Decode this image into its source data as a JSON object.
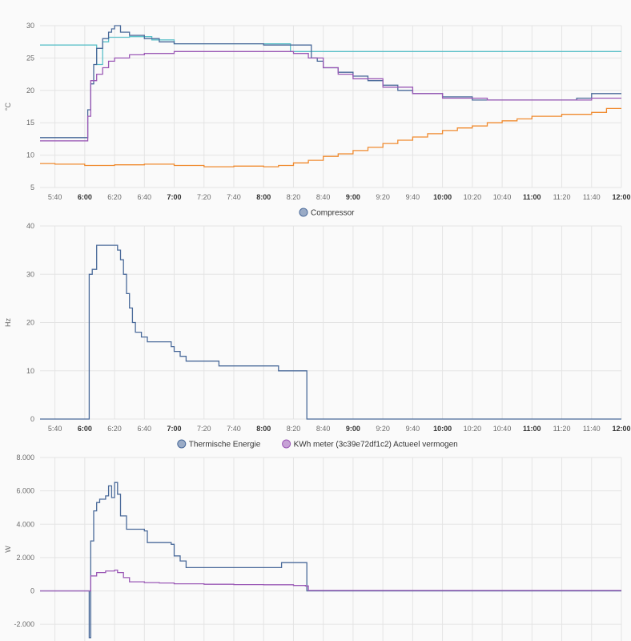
{
  "chart_data": [
    {
      "type": "line",
      "ylabel": "°C",
      "ylim": [
        5,
        30
      ],
      "yticks": [
        5,
        10,
        15,
        20,
        25,
        30
      ],
      "x_start": "5:30",
      "x_end": "12:00",
      "xticks": [
        "5:40",
        "6:00",
        "6:20",
        "6:40",
        "7:00",
        "7:20",
        "7:40",
        "8:00",
        "8:20",
        "8:40",
        "9:00",
        "9:20",
        "9:40",
        "10:00",
        "10:20",
        "10:40",
        "11:00",
        "11:20",
        "11:40",
        "12:00"
      ],
      "bold_xticks": [
        "6:00",
        "7:00",
        "8:00",
        "9:00",
        "10:00",
        "11:00",
        "12:00"
      ],
      "legend": [],
      "series": [
        {
          "color": "#5bc0c8",
          "step": true,
          "points": [
            [
              "5:30",
              27
            ],
            [
              "6:05",
              27
            ],
            [
              "6:08",
              24
            ],
            [
              "6:12",
              27.5
            ],
            [
              "6:16",
              28.2
            ],
            [
              "6:30",
              28.3
            ],
            [
              "6:45",
              27.8
            ],
            [
              "7:00",
              27.2
            ],
            [
              "8:00",
              27.2
            ],
            [
              "8:17",
              27.2
            ],
            [
              "8:18",
              26
            ],
            [
              "12:00",
              26
            ]
          ]
        },
        {
          "color": "#4a6a9a",
          "step": true,
          "points": [
            [
              "5:30",
              12.7
            ],
            [
              "6:00",
              12.7
            ],
            [
              "6:02",
              17
            ],
            [
              "6:04",
              21
            ],
            [
              "6:06",
              24
            ],
            [
              "6:08",
              26.5
            ],
            [
              "6:12",
              28
            ],
            [
              "6:16",
              29
            ],
            [
              "6:18",
              29.5
            ],
            [
              "6:20",
              30
            ],
            [
              "6:24",
              29
            ],
            [
              "6:30",
              28.5
            ],
            [
              "6:40",
              28
            ],
            [
              "6:50",
              27.5
            ],
            [
              "7:00",
              27.2
            ],
            [
              "7:30",
              27.2
            ],
            [
              "8:00",
              27
            ],
            [
              "8:29",
              27
            ],
            [
              "8:32",
              25
            ],
            [
              "8:36",
              24.5
            ],
            [
              "8:40",
              23.5
            ],
            [
              "8:50",
              22.8
            ],
            [
              "9:00",
              22.2
            ],
            [
              "9:10",
              21.5
            ],
            [
              "9:20",
              20.8
            ],
            [
              "9:30",
              20
            ],
            [
              "9:40",
              19.5
            ],
            [
              "10:00",
              19
            ],
            [
              "10:20",
              18.5
            ],
            [
              "10:40",
              18.5
            ],
            [
              "11:00",
              18.5
            ],
            [
              "11:30",
              18.8
            ],
            [
              "11:40",
              19.5
            ],
            [
              "12:00",
              19.5
            ]
          ]
        },
        {
          "color": "#9b59b6",
          "step": true,
          "points": [
            [
              "5:30",
              12.2
            ],
            [
              "6:00",
              12.2
            ],
            [
              "6:02",
              16
            ],
            [
              "6:04",
              21.5
            ],
            [
              "6:08",
              22.5
            ],
            [
              "6:12",
              23.5
            ],
            [
              "6:16",
              24.5
            ],
            [
              "6:20",
              25
            ],
            [
              "6:30",
              25.5
            ],
            [
              "6:40",
              25.7
            ],
            [
              "7:00",
              26
            ],
            [
              "7:30",
              26
            ],
            [
              "8:00",
              26
            ],
            [
              "8:20",
              25.7
            ],
            [
              "8:30",
              25
            ],
            [
              "8:40",
              23.5
            ],
            [
              "8:50",
              22.5
            ],
            [
              "9:00",
              21.8
            ],
            [
              "9:20",
              20.5
            ],
            [
              "9:40",
              19.5
            ],
            [
              "10:00",
              18.8
            ],
            [
              "10:30",
              18.5
            ],
            [
              "11:00",
              18.5
            ],
            [
              "11:40",
              18.8
            ],
            [
              "12:00",
              18.8
            ]
          ]
        },
        {
          "color": "#f08a2e",
          "step": true,
          "points": [
            [
              "5:30",
              8.7
            ],
            [
              "5:40",
              8.6
            ],
            [
              "6:00",
              8.4
            ],
            [
              "6:20",
              8.5
            ],
            [
              "6:40",
              8.6
            ],
            [
              "7:00",
              8.4
            ],
            [
              "7:20",
              8.2
            ],
            [
              "7:40",
              8.3
            ],
            [
              "8:00",
              8.2
            ],
            [
              "8:10",
              8.4
            ],
            [
              "8:20",
              8.8
            ],
            [
              "8:30",
              9.2
            ],
            [
              "8:40",
              9.8
            ],
            [
              "8:50",
              10.2
            ],
            [
              "9:00",
              10.7
            ],
            [
              "9:10",
              11.2
            ],
            [
              "9:20",
              11.8
            ],
            [
              "9:30",
              12.3
            ],
            [
              "9:40",
              12.8
            ],
            [
              "9:50",
              13.3
            ],
            [
              "10:00",
              13.8
            ],
            [
              "10:10",
              14.2
            ],
            [
              "10:20",
              14.5
            ],
            [
              "10:30",
              15
            ],
            [
              "10:40",
              15.3
            ],
            [
              "10:50",
              15.6
            ],
            [
              "11:00",
              16
            ],
            [
              "11:20",
              16.3
            ],
            [
              "11:40",
              16.6
            ],
            [
              "11:50",
              17.2
            ],
            [
              "12:00",
              17.2
            ]
          ]
        }
      ]
    },
    {
      "type": "line",
      "ylabel": "Hz",
      "ylim": [
        0,
        40
      ],
      "yticks": [
        0,
        10,
        20,
        30,
        40
      ],
      "x_start": "5:30",
      "x_end": "12:00",
      "xticks": [
        "5:40",
        "6:00",
        "6:20",
        "6:40",
        "7:00",
        "7:20",
        "7:40",
        "8:00",
        "8:20",
        "8:40",
        "9:00",
        "9:20",
        "9:40",
        "10:00",
        "10:20",
        "10:40",
        "11:00",
        "11:20",
        "11:40",
        "12:00"
      ],
      "bold_xticks": [
        "6:00",
        "7:00",
        "8:00",
        "9:00",
        "10:00",
        "11:00",
        "12:00"
      ],
      "legend": [
        "Compressor"
      ],
      "series": [
        {
          "name": "Compressor",
          "color": "#4a6a9a",
          "step": true,
          "points": [
            [
              "5:30",
              0
            ],
            [
              "6:02",
              0
            ],
            [
              "6:03",
              30
            ],
            [
              "6:05",
              31
            ],
            [
              "6:08",
              36
            ],
            [
              "6:22",
              35
            ],
            [
              "6:24",
              33
            ],
            [
              "6:26",
              30
            ],
            [
              "6:28",
              26
            ],
            [
              "6:30",
              23
            ],
            [
              "6:32",
              20
            ],
            [
              "6:34",
              18
            ],
            [
              "6:38",
              17
            ],
            [
              "6:42",
              16
            ],
            [
              "6:58",
              15
            ],
            [
              "7:00",
              14
            ],
            [
              "7:04",
              13
            ],
            [
              "7:08",
              12
            ],
            [
              "7:30",
              11
            ],
            [
              "8:10",
              10
            ],
            [
              "8:28",
              10
            ],
            [
              "8:29",
              0
            ],
            [
              "12:00",
              0
            ]
          ]
        }
      ]
    },
    {
      "type": "line",
      "ylabel": "W",
      "ylim": [
        -3000,
        8000
      ],
      "yticks": [
        -2000,
        0,
        2000,
        4000,
        6000,
        8000
      ],
      "ytick_labels": [
        "-2.000",
        "0",
        "2.000",
        "4.000",
        "6.000",
        "8.000"
      ],
      "x_start": "5:30",
      "x_end": "12:00",
      "xticks": [],
      "legend": [
        "Thermische Energie",
        "KWh meter (3c39e72df1c2) Actueel vermogen"
      ],
      "series": [
        {
          "name": "Thermische Energie",
          "color": "#4a6a9a",
          "step": true,
          "points": [
            [
              "5:30",
              0
            ],
            [
              "6:02",
              0
            ],
            [
              "6:03",
              -2800
            ],
            [
              "6:04",
              3000
            ],
            [
              "6:06",
              4800
            ],
            [
              "6:08",
              5300
            ],
            [
              "6:10",
              5500
            ],
            [
              "6:14",
              5700
            ],
            [
              "6:16",
              6300
            ],
            [
              "6:18",
              5600
            ],
            [
              "6:20",
              6500
            ],
            [
              "6:22",
              5800
            ],
            [
              "6:24",
              4500
            ],
            [
              "6:28",
              3700
            ],
            [
              "6:40",
              3600
            ],
            [
              "6:42",
              2900
            ],
            [
              "6:58",
              2800
            ],
            [
              "7:00",
              2100
            ],
            [
              "7:04",
              1800
            ],
            [
              "7:08",
              1400
            ],
            [
              "8:10",
              1400
            ],
            [
              "8:12",
              1700
            ],
            [
              "8:28",
              1700
            ],
            [
              "8:29",
              0
            ],
            [
              "12:00",
              0
            ]
          ]
        },
        {
          "name": "KWh meter (3c39e72df1c2) Actueel vermogen",
          "color": "#9b59b6",
          "step": true,
          "points": [
            [
              "5:30",
              0
            ],
            [
              "6:02",
              0
            ],
            [
              "6:04",
              900
            ],
            [
              "6:08",
              1100
            ],
            [
              "6:14",
              1200
            ],
            [
              "6:20",
              1250
            ],
            [
              "6:22",
              1100
            ],
            [
              "6:26",
              800
            ],
            [
              "6:30",
              550
            ],
            [
              "6:40",
              500
            ],
            [
              "6:50",
              480
            ],
            [
              "7:00",
              430
            ],
            [
              "7:20",
              400
            ],
            [
              "7:40",
              380
            ],
            [
              "8:00",
              370
            ],
            [
              "8:20",
              330
            ],
            [
              "8:28",
              300
            ],
            [
              "8:30",
              30
            ],
            [
              "12:00",
              30
            ]
          ]
        }
      ]
    }
  ]
}
